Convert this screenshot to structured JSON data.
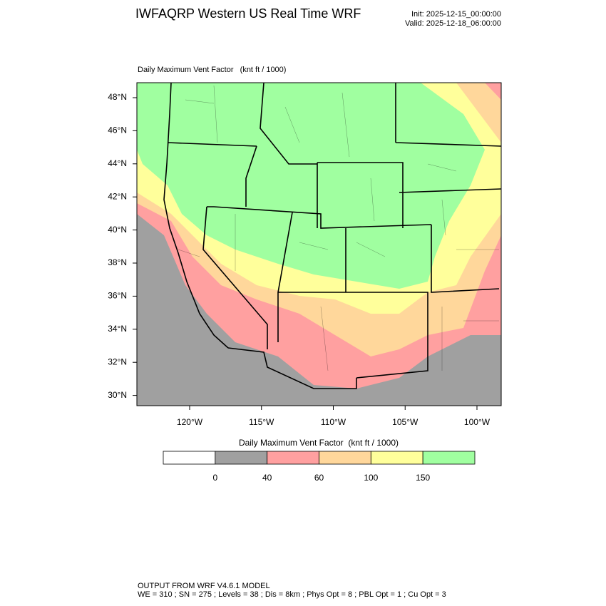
{
  "header": {
    "title": "IWFAQRP Western US Real Time WRF",
    "init": "Init: 2025-12-15_00:00:00",
    "valid": "Valid: 2025-12-18_06:00:00"
  },
  "map": {
    "title": "Daily Maximum Vent Factor   (knt ft / 1000)",
    "lat_labels": [
      "48°N",
      "46°N",
      "44°N",
      "42°N",
      "40°N",
      "38°N",
      "36°N",
      "34°N",
      "32°N",
      "30°N"
    ],
    "lon_labels": [
      "120°W",
      "115°W",
      "110°W",
      "105°W",
      "100°W"
    ]
  },
  "colorbar": {
    "title": "Daily Maximum Vent Factor  (knt ft / 1000)",
    "colors": [
      "#ffffff",
      "#a0a0a0",
      "#ffa0a0",
      "#ffd79b",
      "#ffff9b",
      "#a0ffa0"
    ],
    "levels": [
      "0",
      "40",
      "60",
      "100",
      "150"
    ]
  },
  "footer": {
    "line1": "OUTPUT FROM WRF V4.6.1 MODEL",
    "line2": "WE = 310 ; SN = 275 ; Levels = 38 ; Dis = 8km ; Phys Opt = 8 ; PBL Opt = 1 ; Cu Opt = 3"
  }
}
